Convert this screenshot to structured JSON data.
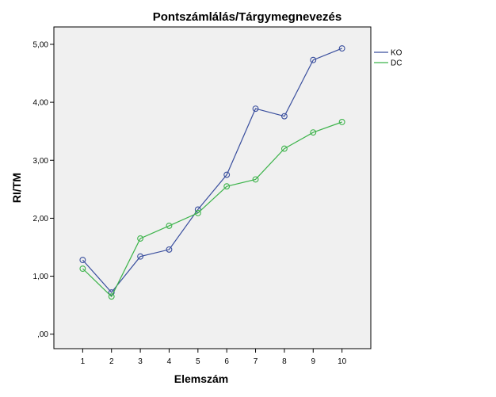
{
  "chart_data": {
    "type": "line",
    "title": "Pontszámlálás/Tárgymegnevezés",
    "xlabel": "Elemszám",
    "ylabel": "RI/TM",
    "x": [
      1,
      2,
      3,
      4,
      5,
      6,
      7,
      8,
      9,
      10
    ],
    "x_tick_labels": [
      "1",
      "2",
      "3",
      "4",
      "5",
      "6",
      "7",
      "8",
      "9",
      "10"
    ],
    "y_ticks": [
      0,
      1,
      2,
      3,
      4,
      5
    ],
    "y_tick_labels": [
      ",00",
      "1,00",
      "2,00",
      "3,00",
      "4,00",
      "5,00"
    ],
    "ylim": [
      -0.25,
      5.3
    ],
    "xlim": [
      0,
      11
    ],
    "grid": false,
    "legend_position": "right",
    "plot_background": "#f0f0f0",
    "series": [
      {
        "name": "KO",
        "color": "#3a4f9e",
        "values": [
          1.28,
          0.72,
          1.34,
          1.46,
          2.15,
          2.75,
          3.89,
          3.76,
          4.73,
          4.93
        ]
      },
      {
        "name": "DC",
        "color": "#3cb34a",
        "values": [
          1.13,
          0.65,
          1.65,
          1.87,
          2.09,
          2.55,
          2.67,
          3.2,
          3.48,
          3.66
        ]
      }
    ]
  }
}
